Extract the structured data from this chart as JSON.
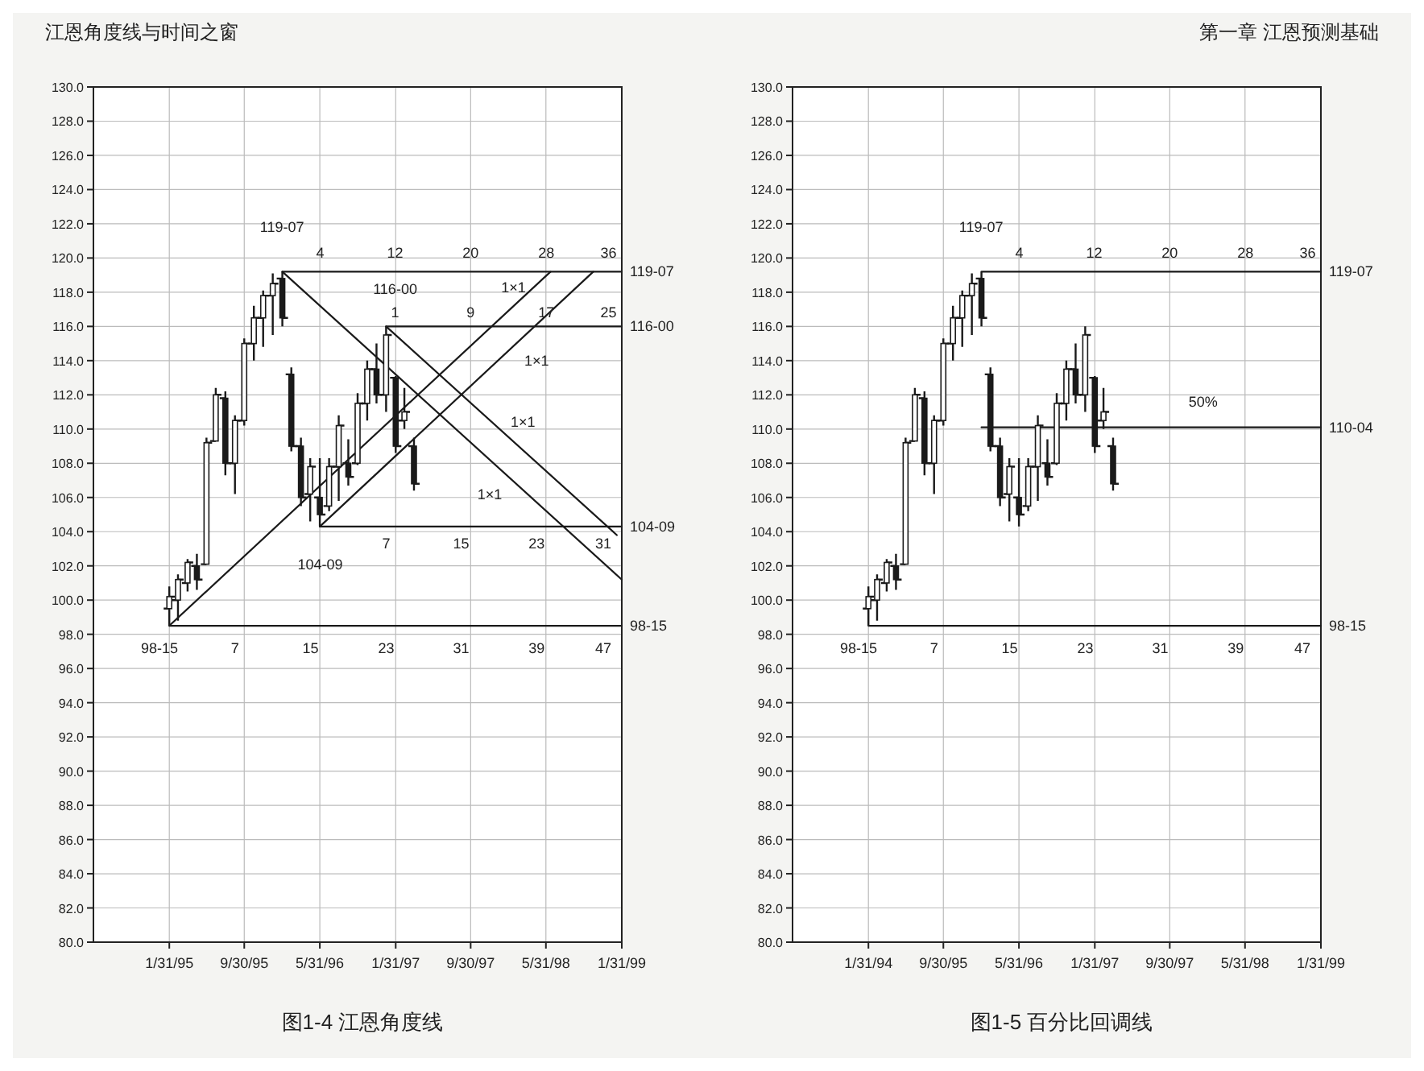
{
  "chart_data": [
    {
      "type": "candlestick",
      "title": "图1-4  江恩角度线",
      "annotations": [
        "江恩角度线与时间之窗",
        "119-07",
        "116-00",
        "104-09",
        "98-15",
        "1×1",
        "1×1",
        "1×1",
        "1×1",
        "4",
        "12",
        "20",
        "28",
        "36",
        "1",
        "9",
        "17",
        "25",
        "7",
        "15",
        "23",
        "31",
        "7",
        "15",
        "23",
        "31",
        "39",
        "47"
      ],
      "x": [
        "1995-01-31",
        "1995-02-28",
        "1995-03-31",
        "1995-04-30",
        "1995-05-31",
        "1995-06-30",
        "1995-07-31",
        "1995-08-31",
        "1995-09-30",
        "1995-10-31",
        "1995-11-30",
        "1995-12-31",
        "1996-01-31",
        "1996-02-29",
        "1996-03-31",
        "1996-04-30",
        "1996-05-31",
        "1996-06-30",
        "1996-07-31",
        "1996-08-31",
        "1996-09-30",
        "1996-10-31",
        "1996-11-30",
        "1996-12-31",
        "1997-01-31",
        "1997-02-28",
        "1997-03-31"
      ],
      "ohlc": [
        [
          99.5,
          100.8,
          98.5,
          100.2
        ],
        [
          100,
          101.5,
          98.8,
          101.2
        ],
        [
          101,
          102.4,
          100.5,
          102.2
        ],
        [
          102,
          102.7,
          100.6,
          101.2
        ],
        [
          102.1,
          109.5,
          102.1,
          109.2
        ],
        [
          109.3,
          112.4,
          109.3,
          112
        ],
        [
          111.8,
          112.2,
          107.3,
          108
        ],
        [
          108,
          110.8,
          106.2,
          110.5
        ],
        [
          110.5,
          115.3,
          110.2,
          115
        ],
        [
          115,
          117.2,
          114,
          116.5
        ],
        [
          116.5,
          118.1,
          114.8,
          117.8
        ],
        [
          117.8,
          119.1,
          115.5,
          118.5
        ],
        [
          118.8,
          119.2,
          116,
          116.5
        ],
        [
          113.2,
          113.6,
          108.7,
          109
        ],
        [
          109,
          109.5,
          105.5,
          106
        ],
        [
          106.2,
          108.3,
          104.6,
          107.8
        ],
        [
          106,
          108.3,
          104.3,
          105
        ],
        [
          105.5,
          108.3,
          105.2,
          107.8
        ],
        [
          107.8,
          110.8,
          105.8,
          110.2
        ],
        [
          108,
          109.4,
          106.7,
          107.2
        ],
        [
          108,
          112.1,
          107.9,
          111.5
        ],
        [
          111.5,
          114,
          110.5,
          113.5
        ],
        [
          113.5,
          115,
          111.5,
          112
        ],
        [
          112,
          116,
          111,
          115.5
        ],
        [
          113,
          113.1,
          108.6,
          109
        ],
        [
          110.5,
          112.4,
          110,
          111
        ],
        [
          109,
          109.5,
          106.4,
          106.8
        ]
      ],
      "color": "#1a1a1a",
      "series": [
        {
          "type": "line",
          "name": "119-07",
          "color": "#1a1a1a",
          "x": [
            "1996-01-31",
            "1999-01-31"
          ],
          "values": [
            119.2,
            119.2
          ]
        },
        {
          "type": "line",
          "name": "116-00",
          "color": "#1a1a1a",
          "x": [
            "1996-12-31",
            "1999-01-31"
          ],
          "values": [
            116,
            116
          ]
        },
        {
          "type": "line",
          "name": "104-09",
          "color": "#1a1a1a",
          "x": [
            "1996-05-31",
            "1999-01-31"
          ],
          "values": [
            104.3,
            104.3
          ]
        },
        {
          "type": "line",
          "name": "98-15",
          "color": "#1a1a1a",
          "x": [
            "1995-01-31",
            "1999-01-31"
          ],
          "values": [
            98.5,
            98.5
          ]
        },
        {
          "type": "line",
          "color": "#1a1a1a",
          "x": [
            "1995-01-31",
            "1998-06-15"
          ],
          "values": [
            98.5,
            119.2
          ]
        },
        {
          "type": "line",
          "color": "#1a1a1a",
          "x": [
            "1996-05-31",
            "1998-10-31"
          ],
          "values": [
            104.3,
            119.2
          ]
        },
        {
          "type": "line",
          "color": "#1a1a1a",
          "x": [
            "1996-01-31",
            "1999-01-31"
          ],
          "values": [
            119.2,
            101.2
          ]
        },
        {
          "type": "line",
          "color": "#1a1a1a",
          "x": [
            "1996-12-31",
            "1999-01-15"
          ],
          "values": [
            116,
            103.8
          ]
        }
      ],
      "xlim": [
        "1994-05-31",
        "1999-01-31"
      ],
      "xticks": [
        {
          "value": "1995-01-31",
          "label": "1/31/95"
        },
        {
          "value": "1995-09-30",
          "label": "9/30/95"
        },
        {
          "value": "1996-05-31",
          "label": "5/31/96"
        },
        {
          "value": "1997-01-31",
          "label": "1/31/97"
        },
        {
          "value": "1997-09-30",
          "label": "9/30/97"
        },
        {
          "value": "1998-05-31",
          "label": "5/31/98"
        },
        {
          "value": "1999-01-31",
          "label": "1/31/99"
        }
      ],
      "ylim": [
        80,
        130
      ],
      "yticks": [
        {
          "value": 80,
          "label": "80.0"
        },
        {
          "value": 82,
          "label": "82.0"
        },
        {
          "value": 84,
          "label": "84.0"
        },
        {
          "value": 86,
          "label": "86.0"
        },
        {
          "value": 88,
          "label": "88.0"
        },
        {
          "value": 90,
          "label": "90.0"
        },
        {
          "value": 92,
          "label": "92.0"
        },
        {
          "value": 94,
          "label": "94.0"
        },
        {
          "value": 96,
          "label": "96.0"
        },
        {
          "value": 98,
          "label": "98.0"
        },
        {
          "value": 100,
          "label": "100.0"
        },
        {
          "value": 102,
          "label": "102.0"
        },
        {
          "value": 104,
          "label": "104.0"
        },
        {
          "value": 106,
          "label": "106.0"
        },
        {
          "value": 108,
          "label": "108.0"
        },
        {
          "value": 110,
          "label": "110.0"
        },
        {
          "value": 112,
          "label": "112.0"
        },
        {
          "value": 114,
          "label": "114.0"
        },
        {
          "value": 116,
          "label": "116.0"
        },
        {
          "value": 118,
          "label": "118.0"
        },
        {
          "value": 120,
          "label": "120.0"
        },
        {
          "value": 122,
          "label": "122.0"
        },
        {
          "value": 124,
          "label": "124.0"
        },
        {
          "value": 126,
          "label": "126.0"
        },
        {
          "value": 128,
          "label": "128.0"
        },
        {
          "value": 130,
          "label": "130.0"
        }
      ],
      "grid": true
    },
    {
      "type": "candlestick",
      "title": "图1-5  百分比回调线",
      "annotations": [
        "第一章  江恩预测基础",
        "119-07",
        "98-15",
        "50%",
        "4",
        "12",
        "20",
        "28",
        "36",
        "7",
        "15",
        "23",
        "31",
        "39",
        "47"
      ],
      "x": [
        "1995-01-31",
        "1995-02-28",
        "1995-03-31",
        "1995-04-30",
        "1995-05-31",
        "1995-06-30",
        "1995-07-31",
        "1995-08-31",
        "1995-09-30",
        "1995-10-31",
        "1995-11-30",
        "1995-12-31",
        "1996-01-31",
        "1996-02-29",
        "1996-03-31",
        "1996-04-30",
        "1996-05-31",
        "1996-06-30",
        "1996-07-31",
        "1996-08-31",
        "1996-09-30",
        "1996-10-31",
        "1996-11-30",
        "1996-12-31",
        "1997-01-31",
        "1997-02-28",
        "1997-03-31"
      ],
      "ohlc": [
        [
          99.5,
          100.8,
          98.5,
          100.2
        ],
        [
          100,
          101.5,
          98.8,
          101.2
        ],
        [
          101,
          102.4,
          100.5,
          102.2
        ],
        [
          102,
          102.7,
          100.6,
          101.2
        ],
        [
          102.1,
          109.5,
          102.1,
          109.2
        ],
        [
          109.3,
          112.4,
          109.3,
          112
        ],
        [
          111.8,
          112.2,
          107.3,
          108
        ],
        [
          108,
          110.8,
          106.2,
          110.5
        ],
        [
          110.5,
          115.3,
          110.2,
          115
        ],
        [
          115,
          117.2,
          114,
          116.5
        ],
        [
          116.5,
          118.1,
          114.8,
          117.8
        ],
        [
          117.8,
          119.1,
          115.5,
          118.5
        ],
        [
          118.8,
          119.2,
          116,
          116.5
        ],
        [
          113.2,
          113.6,
          108.7,
          109
        ],
        [
          109,
          109.5,
          105.5,
          106
        ],
        [
          106.2,
          108.3,
          104.6,
          107.8
        ],
        [
          106,
          108.3,
          104.3,
          105
        ],
        [
          105.5,
          108.3,
          105.2,
          107.8
        ],
        [
          107.8,
          110.8,
          105.8,
          110.2
        ],
        [
          108,
          109.4,
          106.7,
          107.2
        ],
        [
          108,
          112.1,
          107.9,
          111.5
        ],
        [
          111.5,
          114,
          110.5,
          113.5
        ],
        [
          113.5,
          115,
          111.5,
          112
        ],
        [
          112,
          116,
          111,
          115.5
        ],
        [
          113,
          113.1,
          108.6,
          109
        ],
        [
          110.5,
          112.4,
          110,
          111
        ],
        [
          109,
          109.5,
          106.4,
          106.8
        ]
      ],
      "color": "#1a1a1a",
      "series": [
        {
          "type": "line",
          "name": "119-07",
          "color": "#1a1a1a",
          "x": [
            "1996-01-31",
            "1999-01-31"
          ],
          "values": [
            119.2,
            119.2
          ]
        },
        {
          "type": "line",
          "name": "110-04",
          "color": "#1a1a1a",
          "x": [
            "1996-01-31",
            "1999-01-31"
          ],
          "values": [
            110.1,
            110.1
          ]
        },
        {
          "type": "line",
          "name": "98-15",
          "color": "#1a1a1a",
          "x": [
            "1995-01-31",
            "1999-01-31"
          ],
          "values": [
            98.5,
            98.5
          ]
        }
      ],
      "xlim": [
        "1994-05-31",
        "1999-01-31"
      ],
      "xticks": [
        {
          "value": "1995-01-31",
          "label": "1/31/94"
        },
        {
          "value": "1995-09-30",
          "label": "9/30/95"
        },
        {
          "value": "1996-05-31",
          "label": "5/31/96"
        },
        {
          "value": "1997-01-31",
          "label": "1/31/97"
        },
        {
          "value": "1997-09-30",
          "label": "9/30/97"
        },
        {
          "value": "1998-05-31",
          "label": "5/31/98"
        },
        {
          "value": "1999-01-31",
          "label": "1/31/99"
        }
      ],
      "ylim": [
        80,
        130
      ],
      "yticks": [
        {
          "value": 80,
          "label": "80.0"
        },
        {
          "value": 82,
          "label": "82.0"
        },
        {
          "value": 84,
          "label": "84.0"
        },
        {
          "value": 86,
          "label": "86.0"
        },
        {
          "value": 88,
          "label": "88.0"
        },
        {
          "value": 90,
          "label": "90.0"
        },
        {
          "value": 92,
          "label": "92.0"
        },
        {
          "value": 94,
          "label": "94.0"
        },
        {
          "value": 96,
          "label": "96.0"
        },
        {
          "value": 98,
          "label": "98.0"
        },
        {
          "value": 100,
          "label": "100.0"
        },
        {
          "value": 102,
          "label": "102.0"
        },
        {
          "value": 104,
          "label": "104.0"
        },
        {
          "value": 106,
          "label": "106.0"
        },
        {
          "value": 108,
          "label": "108.0"
        },
        {
          "value": 110,
          "label": "110.0"
        },
        {
          "value": 112,
          "label": "112.0"
        },
        {
          "value": 114,
          "label": "114.0"
        },
        {
          "value": 116,
          "label": "116.0"
        },
        {
          "value": 118,
          "label": "118.0"
        },
        {
          "value": 120,
          "label": "120.0"
        },
        {
          "value": 122,
          "label": "122.0"
        },
        {
          "value": 124,
          "label": "124.0"
        },
        {
          "value": 126,
          "label": "126.0"
        },
        {
          "value": 128,
          "label": "128.0"
        },
        {
          "value": 130,
          "label": "130.0"
        }
      ],
      "grid": true
    }
  ]
}
